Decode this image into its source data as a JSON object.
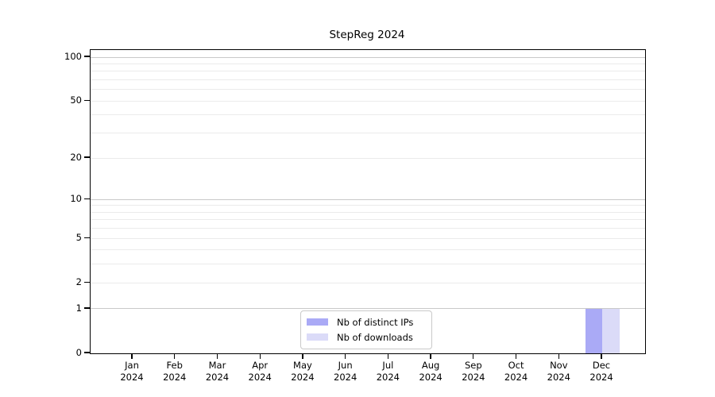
{
  "chart_data": {
    "type": "bar",
    "title": "StepReg 2024",
    "months": [
      "Jan",
      "Feb",
      "Mar",
      "Apr",
      "May",
      "Jun",
      "Jul",
      "Aug",
      "Sep",
      "Oct",
      "Nov",
      "Dec"
    ],
    "year": "2024",
    "series": [
      {
        "name": "Nb of distinct IPs",
        "color": "#aaaaf6",
        "values": [
          0,
          0,
          0,
          0,
          0,
          0,
          0,
          0,
          0,
          0,
          0,
          1
        ]
      },
      {
        "name": "Nb of downloads",
        "color": "#dbdbf8",
        "values": [
          0,
          0,
          0,
          0,
          0,
          0,
          0,
          0,
          0,
          0,
          0,
          1
        ]
      }
    ],
    "yscale": "log1p",
    "ylim": [
      0,
      100
    ],
    "yticks": [
      100,
      50,
      20,
      10,
      5,
      2,
      1,
      0
    ],
    "grid": {
      "major": [
        1,
        10,
        100
      ],
      "minor": [
        2,
        3,
        4,
        5,
        6,
        7,
        8,
        9,
        20,
        30,
        40,
        50,
        60,
        70,
        80,
        90
      ],
      "grid_major_color": "#c9c9c9",
      "grid_minor_color": "#ebebeb"
    },
    "legend": {
      "position": "bottom-center-inside"
    },
    "colors": {
      "axis": "#000000",
      "background": "#ffffff"
    }
  }
}
